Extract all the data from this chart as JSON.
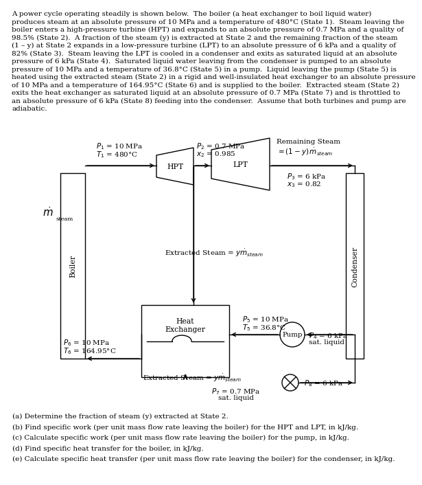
{
  "para_lines": [
    "A power cycle operating steadily is shown below.  The boiler (a heat exchanger to boil liquid water)",
    "produces steam at an absolute pressure of 10 MPa and a temperature of 480°C (State 1).  Steam leaving the",
    "boiler enters a high-pressure turbine (HPT) and expands to an absolute pressure of 0.7 MPa and a quality of",
    "98.5% (State 2).  A fraction of the steam (y) is extracted at State 2 and the remaining fraction of the steam",
    "(1 – y) at State 2 expands in a low-pressure turbine (LPT) to an absolute pressure of 6 kPa and a quality of",
    "82% (State 3).  Steam leaving the LPT is cooled in a condenser and exits as saturated liquid at an absolute",
    "pressure of 6 kPa (State 4).  Saturated liquid water leaving from the condenser is pumped to an absolute",
    "pressure of 10 MPa and a temperature of 36.8°C (State 5) in a pump.  Liquid leaving the pump (State 5) is",
    "heated using the extracted steam (State 2) in a rigid and well-insulated heat exchanger to an absolute pressure",
    "of 10 MPa and a temperature of 164.95°C (State 6) and is supplied to the boiler.  Extracted steam (State 2)",
    "exits the heat exchanger as saturated liquid at an absolute pressure of 0.7 MPa (State 7) and is throttled to",
    "an absolute pressure of 6 kPa (State 8) feeding into the condenser.  Assume that both turbines and pump are",
    "adiabatic."
  ],
  "questions": [
    "(a) Determine the fraction of steam (y) extracted at State 2.",
    "(b) Find specific work (per unit mass flow rate leaving the boiler) for the HPT and LPT, in kJ/kg.",
    "(c) Calculate specific work (per unit mass flow rate leaving the boiler) for the pump, in kJ/kg.",
    "(d) Find specific heat transfer for the boiler, in kJ/kg.",
    "(e) Calculate specific heat transfer (per unit mass flow rate leaving the boiler) for the condenser, in kJ/kg."
  ],
  "fc": "#000000",
  "bg": "#ffffff",
  "para_fs": 7.5,
  "label_fs": 7.8,
  "q_fs": 8.5
}
